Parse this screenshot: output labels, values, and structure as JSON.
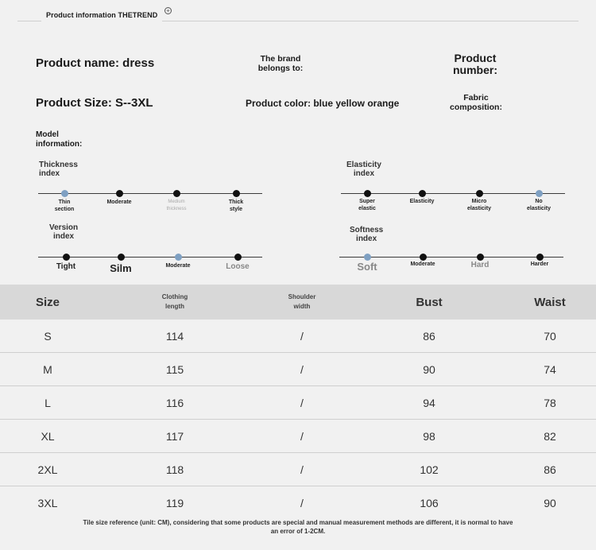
{
  "header": {
    "title": "Product information THETREND"
  },
  "info": {
    "product_name": "Product name: dress",
    "brand": "The brand\nbelongs to:",
    "product_number": "Product\nnumber:",
    "product_size": "Product Size: S--3XL",
    "product_color": "Product color: blue yellow orange",
    "fabric": "Fabric\ncomposition:",
    "model": "Model\ninformation:"
  },
  "indices": {
    "thickness": {
      "title": "Thickness\nindex",
      "ticks": [
        "Thin\nsection",
        "Moderate",
        "Medium\nthickness",
        "Thick\nstyle"
      ],
      "active": 0
    },
    "elasticity": {
      "title": "Elasticity\nindex",
      "ticks": [
        "Super\nelastic",
        "Elasticity",
        "Micro\nelasticity",
        "No\nelasticity"
      ],
      "active": 3
    },
    "version": {
      "title": "Version\nindex",
      "ticks": [
        "Tight",
        "Silm",
        "Moderate",
        "Loose"
      ],
      "active": 2
    },
    "softness": {
      "title": "Softness\nindex",
      "ticks": [
        "Soft",
        "Moderate",
        "Hard",
        "Harder"
      ],
      "active": 0
    }
  },
  "table": {
    "headers": [
      "Size",
      "Clothing\nlength",
      "Shoulder\nwidth",
      "Bust",
      "Waist"
    ],
    "rows": [
      [
        "S",
        "114",
        "/",
        "86",
        "70"
      ],
      [
        "M",
        "115",
        "/",
        "90",
        "74"
      ],
      [
        "L",
        "116",
        "/",
        "94",
        "78"
      ],
      [
        "XL",
        "117",
        "/",
        "98",
        "82"
      ],
      [
        "2XL",
        "118",
        "/",
        "102",
        "86"
      ],
      [
        "3XL",
        "119",
        "/",
        "106",
        "90"
      ]
    ]
  },
  "footnote": "Tile size reference (unit: CM), considering that some products are special and manual measurement methods are different, it is normal to have\nan error of 1-2CM.",
  "colors": {
    "background": "#f1f1f1",
    "table_header": "#d8d8d8",
    "active_dot": "#7fa0c2",
    "dot": "#111111"
  }
}
